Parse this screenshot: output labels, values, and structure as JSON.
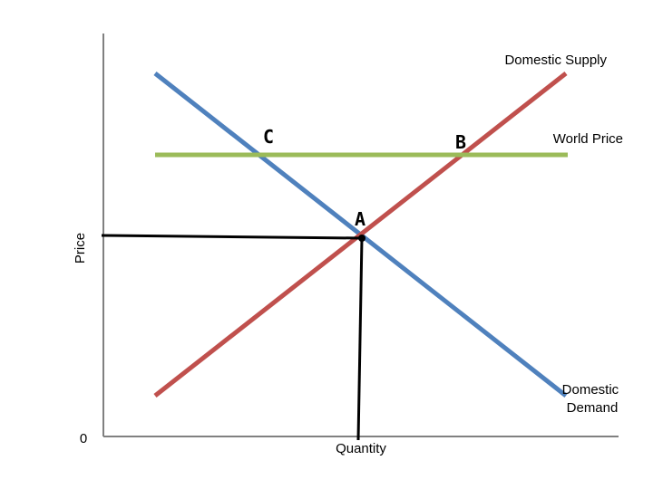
{
  "chart_data": {
    "type": "line",
    "title": "",
    "xlabel": "Quantity",
    "ylabel": "Price",
    "origin_label": "0",
    "colors": {
      "supply": "#c0504d",
      "demand": "#4f81bd",
      "world_price": "#9bbb59",
      "guide": "#000000",
      "axis": "#808080"
    },
    "series": [
      {
        "key": "supply",
        "name": "Domestic Supply"
      },
      {
        "key": "demand",
        "name": "Domestic Demand"
      },
      {
        "key": "world_price",
        "name": "World Price"
      }
    ],
    "points": [
      {
        "key": "A",
        "label": "A"
      },
      {
        "key": "B",
        "label": "B"
      },
      {
        "key": "C",
        "label": "C"
      }
    ]
  }
}
